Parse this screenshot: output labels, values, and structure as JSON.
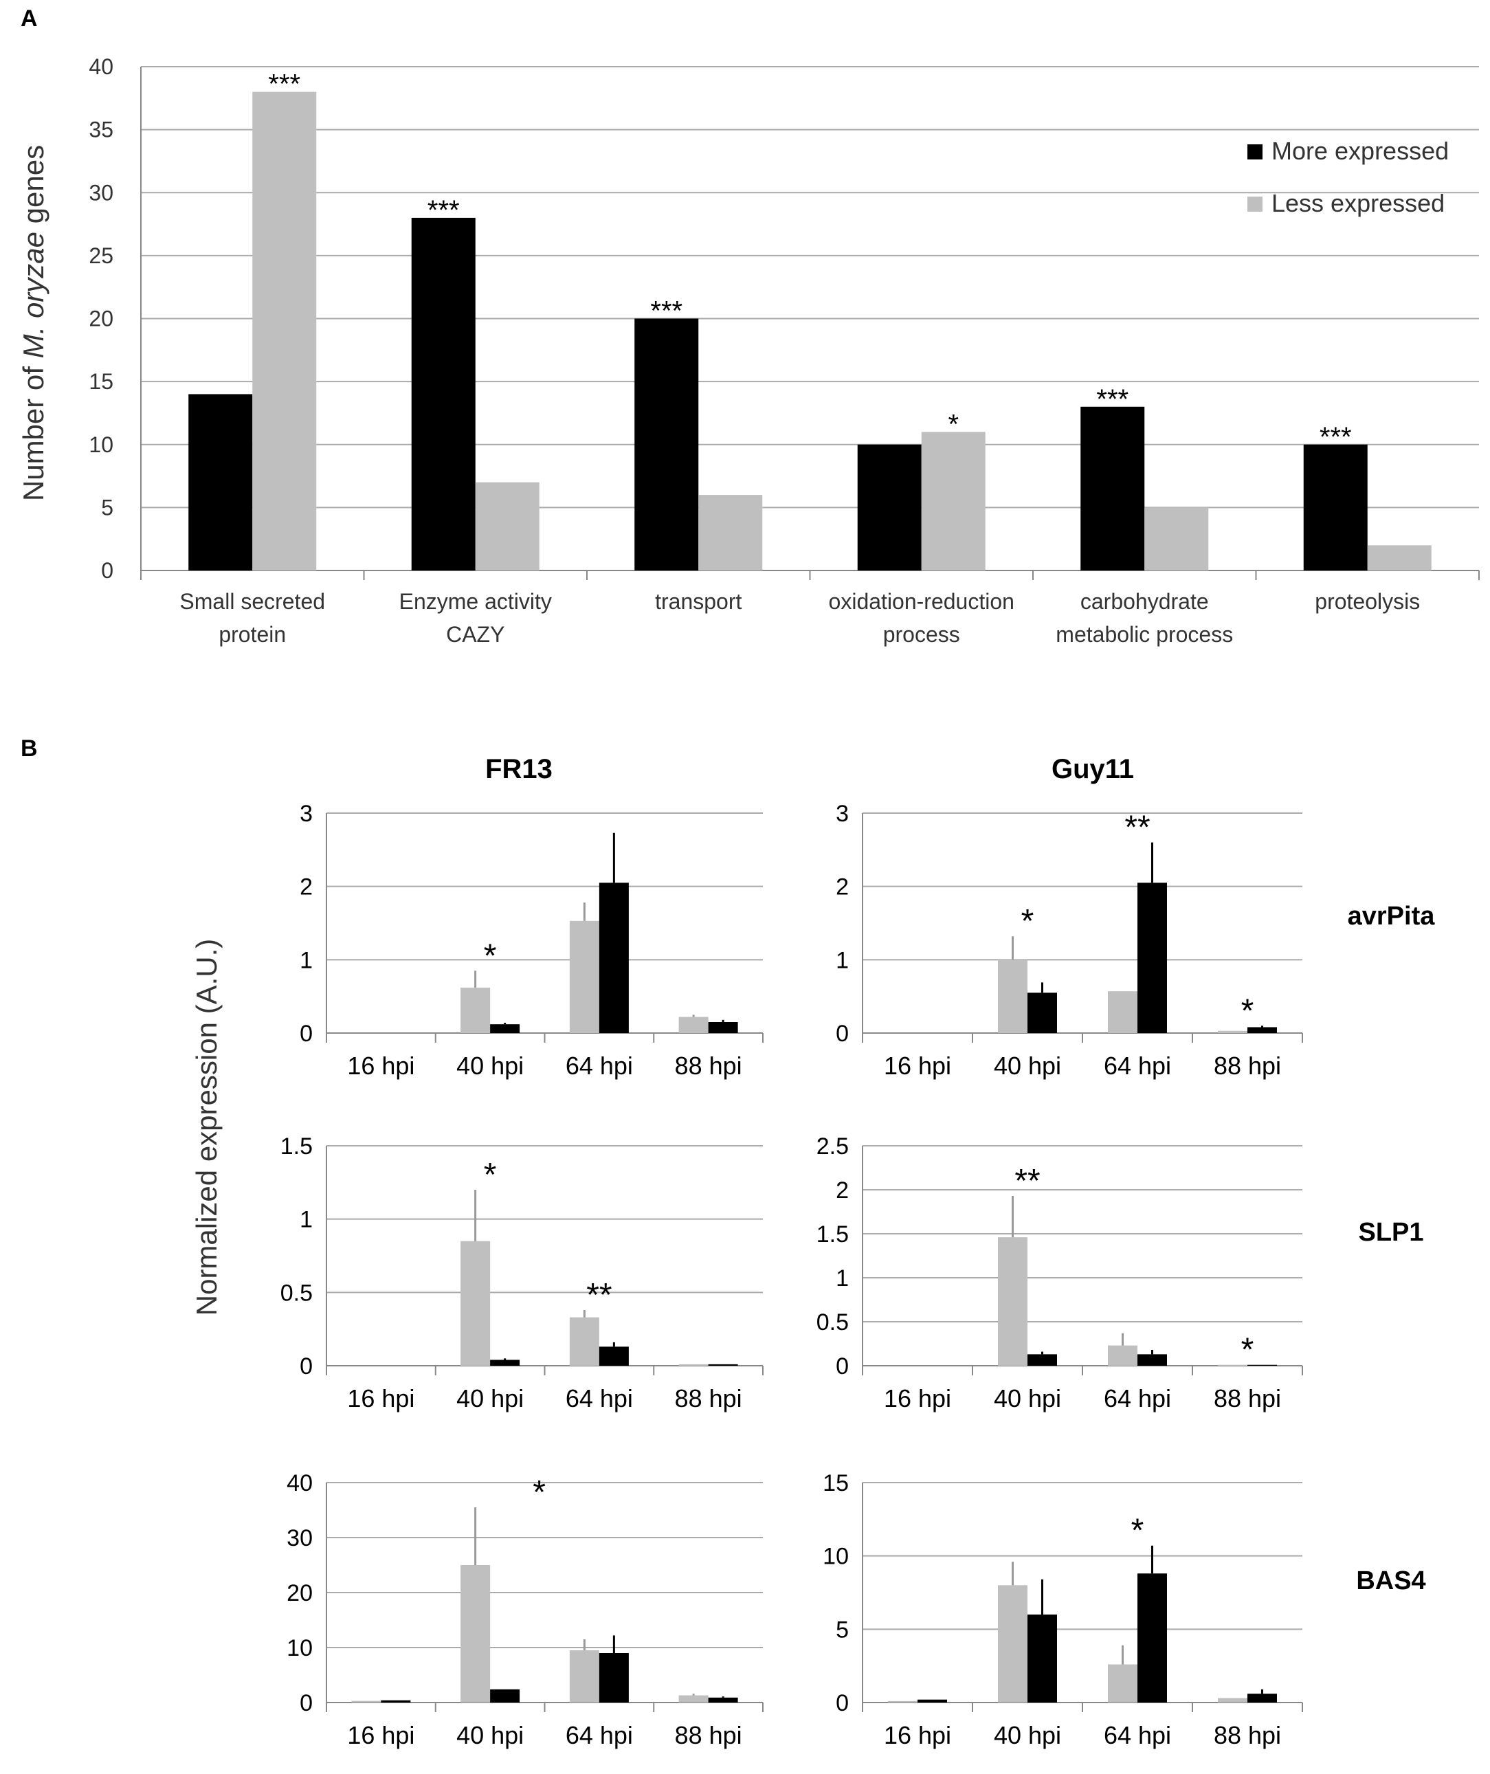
{
  "colors": {
    "more": "#000000",
    "less": "#bfbfbf",
    "grid": "#aaaaaa",
    "axis": "#888888",
    "text": "#333333"
  },
  "panel_a": {
    "label": "A"
  },
  "panel_b": {
    "label": "B",
    "ylabel": "Normalized expression (A.U.)",
    "col_titles": [
      "FR13",
      "Guy11"
    ],
    "row_labels": [
      "avrPita",
      "SLP1",
      "BAS4"
    ]
  },
  "chart_data": [
    {
      "id": "A",
      "type": "bar",
      "title": "",
      "xlabel": "",
      "ylabel_parts": [
        "Number of ",
        "M. oryzae",
        " genes"
      ],
      "categories": [
        [
          "Small secreted",
          "protein"
        ],
        [
          "Enzyme activity",
          "CAZY"
        ],
        [
          "transport"
        ],
        [
          "oxidation-reduction",
          "process"
        ],
        [
          "carbohydrate",
          "metabolic process"
        ],
        [
          "proteolysis"
        ]
      ],
      "series": [
        {
          "name": "More expressed",
          "color": "#000000",
          "values": [
            14,
            28,
            20,
            10,
            13,
            10
          ]
        },
        {
          "name": "Less expressed",
          "color": "#bfbfbf",
          "values": [
            38,
            7,
            6,
            11,
            5,
            2
          ]
        }
      ],
      "annotations": [
        {
          "category": 0,
          "series": 1,
          "text": "***"
        },
        {
          "category": 1,
          "series": 0,
          "text": "***"
        },
        {
          "category": 2,
          "series": 0,
          "text": "***"
        },
        {
          "category": 3,
          "series": 1,
          "text": "*"
        },
        {
          "category": 4,
          "series": 0,
          "text": "***"
        },
        {
          "category": 5,
          "series": 0,
          "text": "***"
        }
      ],
      "ylim": [
        0,
        40
      ],
      "yticks": [
        0,
        5,
        10,
        15,
        20,
        25,
        30,
        35,
        40
      ],
      "grid": true,
      "legend": "top-right"
    },
    {
      "id": "B-FR13-avrPita",
      "type": "bar",
      "categories": [
        "16 hpi",
        "40 hpi",
        "64 hpi",
        "88 hpi"
      ],
      "series": [
        {
          "name": "Less expressed",
          "color": "#bfbfbf",
          "values": [
            0,
            0.62,
            1.53,
            0.22
          ],
          "errors": [
            0,
            0.23,
            0.25,
            0.03
          ]
        },
        {
          "name": "More expressed",
          "color": "#000000",
          "values": [
            0,
            0.12,
            2.05,
            0.15
          ],
          "errors": [
            0,
            0.02,
            0.68,
            0.03
          ]
        }
      ],
      "annotations": [
        {
          "category": 1,
          "text": "*"
        }
      ],
      "ylim": [
        0,
        3
      ],
      "ytick_labels": [
        "0",
        "1",
        "2",
        "3"
      ],
      "yticks": [
        0,
        1,
        2,
        3
      ]
    },
    {
      "id": "B-Guy11-avrPita",
      "type": "bar",
      "categories": [
        "16 hpi",
        "40 hpi",
        "64 hpi",
        "88 hpi"
      ],
      "series": [
        {
          "name": "Less expressed",
          "color": "#bfbfbf",
          "values": [
            0,
            1.0,
            0.57,
            0.03
          ],
          "errors": [
            0,
            0.32,
            0,
            0
          ]
        },
        {
          "name": "More expressed",
          "color": "#000000",
          "values": [
            0,
            0.55,
            2.05,
            0.08
          ],
          "errors": [
            0,
            0.14,
            0.55,
            0.02
          ]
        }
      ],
      "annotations": [
        {
          "category": 1,
          "text": "*"
        },
        {
          "category": 2,
          "text": "**"
        },
        {
          "category": 3,
          "text": "*"
        }
      ],
      "ylim": [
        0,
        3
      ],
      "ytick_labels": [
        "0",
        "1",
        "2",
        "3"
      ],
      "yticks": [
        0,
        1,
        2,
        3
      ]
    },
    {
      "id": "B-FR13-SLP1",
      "type": "bar",
      "categories": [
        "16 hpi",
        "40 hpi",
        "64 hpi",
        "88 hpi"
      ],
      "series": [
        {
          "name": "Less expressed",
          "color": "#bfbfbf",
          "values": [
            0,
            0.85,
            0.33,
            0.01
          ],
          "errors": [
            0,
            0.35,
            0.05,
            0
          ]
        },
        {
          "name": "More expressed",
          "color": "#000000",
          "values": [
            0,
            0.04,
            0.13,
            0.01
          ],
          "errors": [
            0,
            0.01,
            0.03,
            0
          ]
        }
      ],
      "annotations": [
        {
          "category": 1,
          "text": "*"
        },
        {
          "category": 2,
          "text": "**"
        }
      ],
      "ylim": [
        0,
        1.5
      ],
      "ytick_labels": [
        "0",
        "0.5",
        "1",
        "1.5"
      ],
      "yticks": [
        0,
        0.5,
        1,
        1.5
      ]
    },
    {
      "id": "B-Guy11-SLP1",
      "type": "bar",
      "categories": [
        "16 hpi",
        "40 hpi",
        "64 hpi",
        "88 hpi"
      ],
      "series": [
        {
          "name": "Less expressed",
          "color": "#bfbfbf",
          "values": [
            0,
            1.46,
            0.23,
            0.01
          ],
          "errors": [
            0,
            0.47,
            0.14,
            0
          ]
        },
        {
          "name": "More expressed",
          "color": "#000000",
          "values": [
            0,
            0.13,
            0.13,
            0.01
          ],
          "errors": [
            0,
            0.03,
            0.05,
            0
          ]
        }
      ],
      "annotations": [
        {
          "category": 1,
          "text": "**"
        },
        {
          "category": 3,
          "text": "*"
        }
      ],
      "ylim": [
        0,
        2.5
      ],
      "ytick_labels": [
        "0",
        "0.5",
        "1",
        "1.5",
        "2",
        "2.5"
      ],
      "yticks": [
        0,
        0.5,
        1,
        1.5,
        2,
        2.5
      ]
    },
    {
      "id": "B-FR13-BAS4",
      "type": "bar",
      "categories": [
        "16 hpi",
        "40 hpi",
        "64 hpi",
        "88 hpi"
      ],
      "series": [
        {
          "name": "Less expressed",
          "color": "#bfbfbf",
          "values": [
            0.3,
            25,
            9.5,
            1.3
          ],
          "errors": [
            0,
            10.5,
            2.0,
            0.3
          ]
        },
        {
          "name": "More expressed",
          "color": "#000000",
          "values": [
            0.4,
            2.4,
            9,
            0.9
          ],
          "errors": [
            0,
            0,
            3.2,
            0.2
          ]
        }
      ],
      "annotations": [
        {
          "category": 1,
          "text": "*",
          "offset": 0.45
        }
      ],
      "ylim": [
        0,
        40
      ],
      "ytick_labels": [
        "0",
        "10",
        "20",
        "30",
        "40"
      ],
      "yticks": [
        0,
        10,
        20,
        30,
        40
      ]
    },
    {
      "id": "B-Guy11-BAS4",
      "type": "bar",
      "categories": [
        "16 hpi",
        "40 hpi",
        "64 hpi",
        "88 hpi"
      ],
      "series": [
        {
          "name": "Less expressed",
          "color": "#bfbfbf",
          "values": [
            0.1,
            8,
            2.6,
            0.3
          ],
          "errors": [
            0,
            1.6,
            1.3,
            0
          ]
        },
        {
          "name": "More expressed",
          "color": "#000000",
          "values": [
            0.2,
            6,
            8.8,
            0.6
          ],
          "errors": [
            0,
            2.4,
            1.9,
            0.3
          ]
        }
      ],
      "annotations": [
        {
          "category": 2,
          "text": "*"
        }
      ],
      "ylim": [
        0,
        15
      ],
      "ytick_labels": [
        "0",
        "5",
        "10",
        "15"
      ],
      "yticks": [
        0,
        5,
        10,
        15
      ]
    }
  ]
}
